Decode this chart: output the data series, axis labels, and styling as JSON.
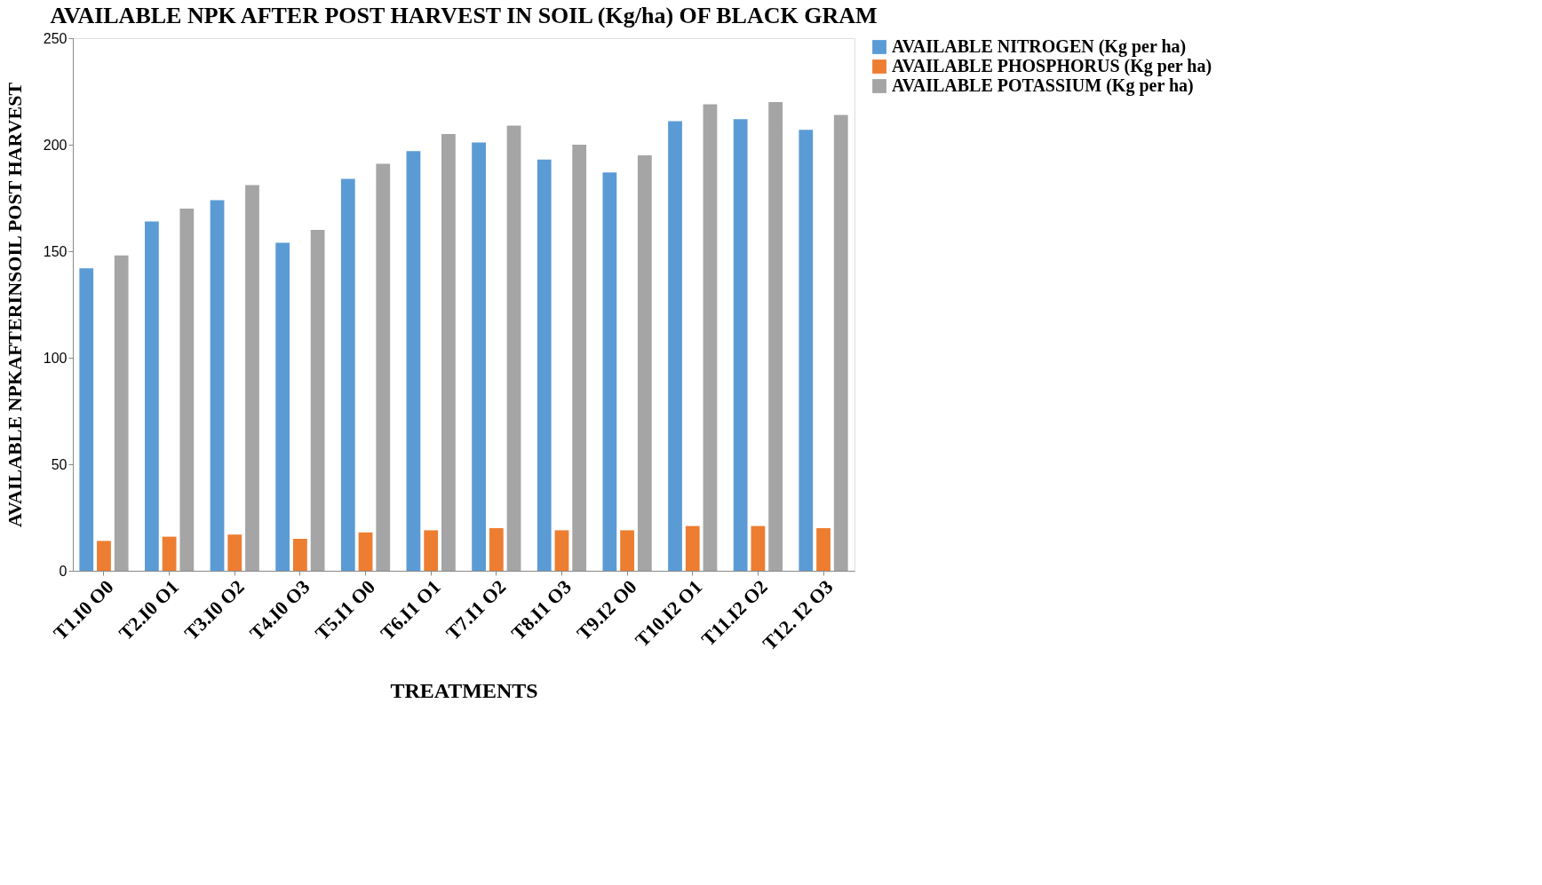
{
  "chart_data": {
    "type": "bar",
    "title": "AVAILABLE NPK AFTER POST HARVEST IN SOIL (Kg/ha) OF BLACK GRAM",
    "xlabel": "TREATMENTS",
    "ylabel": "AVAILABLE NPKAFTERINSOIL POST HARVEST",
    "categories": [
      "T1.I0 O0",
      "T2.I0 O1",
      "T3.I0 O2",
      "T4.I0 O3",
      "T5.I1 O0",
      "T6.I1 O1",
      "T7.I1 O2",
      "T8.I1 O3",
      "T9.I2 O0",
      "T10.I2 O1",
      "T11.I2 O2",
      "T12. I2 O3"
    ],
    "series": [
      {
        "name": "AVAILABLE NITROGEN (Kg per ha)",
        "color": "#5b9bd5",
        "values": [
          142,
          164,
          174,
          154,
          184,
          197,
          201,
          193,
          187,
          211,
          212,
          207
        ]
      },
      {
        "name": "AVAILABLE PHOSPHORUS (Kg per ha)",
        "color": "#ed7d31",
        "values": [
          14,
          16,
          17,
          15,
          18,
          19,
          20,
          19,
          19,
          21,
          21,
          20
        ]
      },
      {
        "name": "AVAILABLE POTASSIUM (Kg per ha)",
        "color": "#a5a5a5",
        "values": [
          148,
          170,
          181,
          160,
          191,
          205,
          209,
          200,
          195,
          219,
          220,
          214
        ]
      }
    ],
    "ylim": [
      0,
      250
    ],
    "yticks": [
      0,
      50,
      100,
      150,
      200,
      250
    ],
    "grid": false,
    "legend": "right"
  }
}
